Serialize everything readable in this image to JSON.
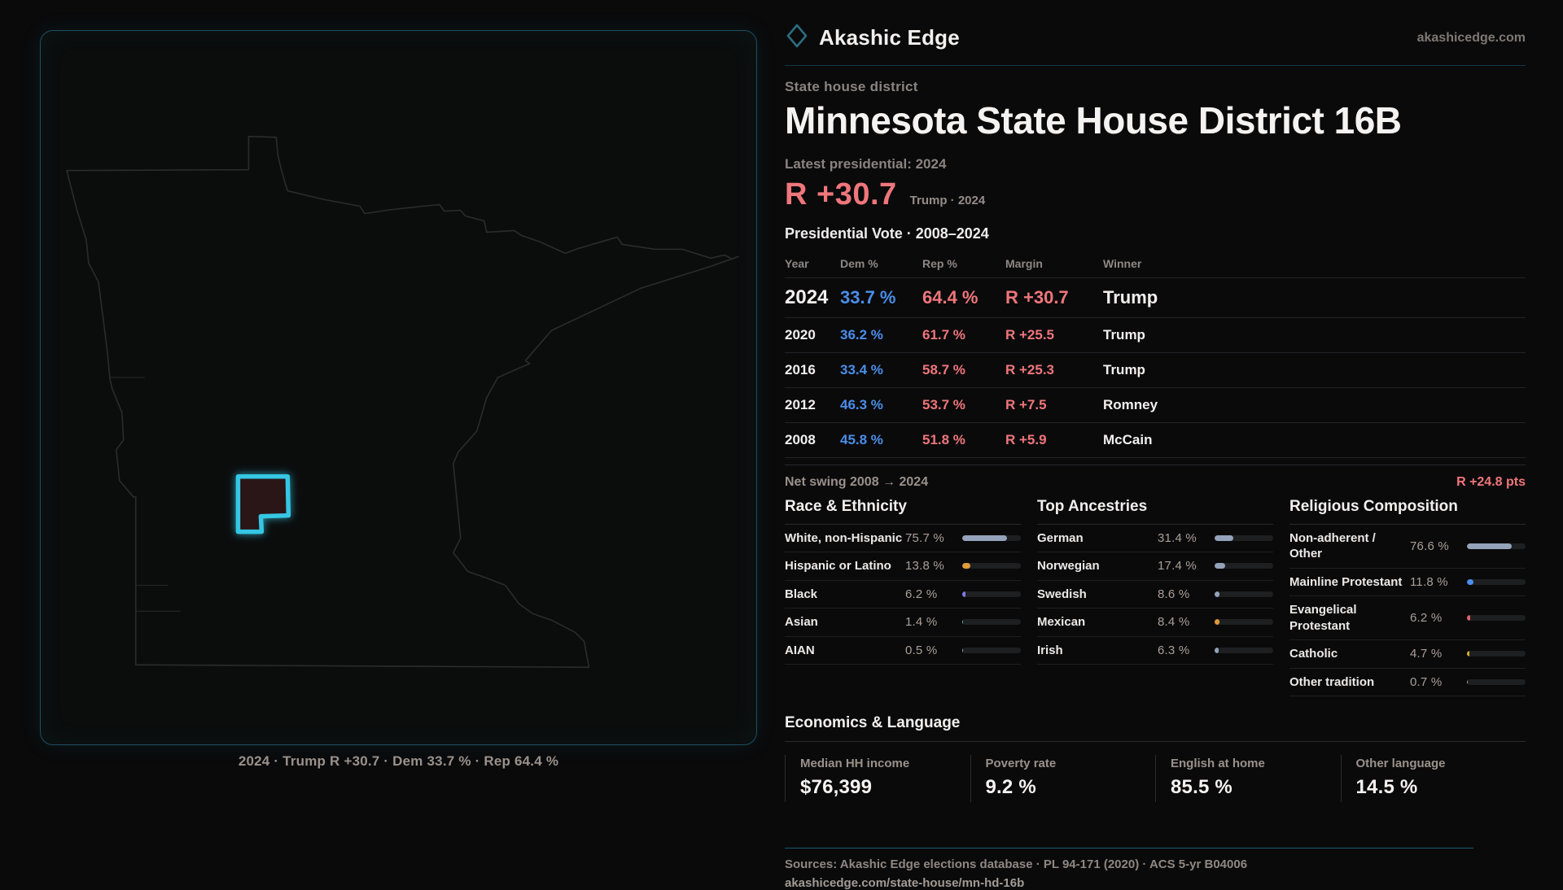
{
  "brand": {
    "name": "Akashic Edge",
    "domain": "akashicedge.com",
    "accent": "#35c7e3"
  },
  "eyebrow": "State house district",
  "title": "Minnesota State House District 16B",
  "latest_label": "Latest presidential: 2024",
  "headline_margin": {
    "value": "R +30.7",
    "context": "Trump · 2024",
    "color": "#ef767b"
  },
  "vote_table": {
    "title": "Presidential Vote · 2008–2024",
    "columns": {
      "year": "Year",
      "dem": "Dem %",
      "rep": "Rep %",
      "margin": "Margin",
      "winner": "Winner"
    },
    "rows": [
      {
        "year": "2024",
        "dem": "33.7 %",
        "rep": "64.4 %",
        "margin": "R +30.7",
        "winner": "Trump"
      },
      {
        "year": "2020",
        "dem": "36.2 %",
        "rep": "61.7 %",
        "margin": "R +25.5",
        "winner": "Trump"
      },
      {
        "year": "2016",
        "dem": "33.4 %",
        "rep": "58.7 %",
        "margin": "R +25.3",
        "winner": "Trump"
      },
      {
        "year": "2012",
        "dem": "46.3 %",
        "rep": "53.7 %",
        "margin": "R +7.5",
        "winner": "Romney"
      },
      {
        "year": "2008",
        "dem": "45.8 %",
        "rep": "51.8 %",
        "margin": "R +5.9",
        "winner": "McCain"
      }
    ]
  },
  "net_swing": {
    "label": "Net swing 2008 → 2024",
    "value": "R +24.8 pts"
  },
  "demographics": [
    {
      "title": "Race & Ethnicity",
      "rows": [
        {
          "label": "White, non-Hispanic",
          "value": "75.7 %",
          "pct": 75.7,
          "color": "#94a3ba"
        },
        {
          "label": "Hispanic or Latino",
          "value": "13.8 %",
          "pct": 13.8,
          "color": "#dd9b3a"
        },
        {
          "label": "Black",
          "value": "6.2 %",
          "pct": 6.2,
          "color": "#8379ec"
        },
        {
          "label": "Asian",
          "value": "1.4 %",
          "pct": 1.4,
          "color": "#33bf92"
        },
        {
          "label": "AIAN",
          "value": "0.5 %",
          "pct": 0.5,
          "color": "#94a3ba"
        }
      ]
    },
    {
      "title": "Top Ancestries",
      "rows": [
        {
          "label": "German",
          "value": "31.4 %",
          "pct": 31.4,
          "color": "#94a3ba"
        },
        {
          "label": "Norwegian",
          "value": "17.4 %",
          "pct": 17.4,
          "color": "#94a3ba"
        },
        {
          "label": "Swedish",
          "value": "8.6 %",
          "pct": 8.6,
          "color": "#94a3ba"
        },
        {
          "label": "Mexican",
          "value": "8.4 %",
          "pct": 8.4,
          "color": "#dd9b3a"
        },
        {
          "label": "Irish",
          "value": "6.3 %",
          "pct": 6.3,
          "color": "#94a3ba"
        }
      ]
    },
    {
      "title": "Religious Composition",
      "rows": [
        {
          "label": "Non-adherent / Other",
          "value": "76.6 %",
          "pct": 76.6,
          "color": "#94a3ba"
        },
        {
          "label": "Mainline Protestant",
          "value": "11.8 %",
          "pct": 11.8,
          "color": "#4a8ee8"
        },
        {
          "label": "Evangelical Protestant",
          "value": "6.2 %",
          "pct": 6.2,
          "color": "#dd6367"
        },
        {
          "label": "Catholic",
          "value": "4.7 %",
          "pct": 4.7,
          "color": "#d9ae2e"
        },
        {
          "label": "Other tradition",
          "value": "0.7 %",
          "pct": 0.7,
          "color": "#94a3ba"
        }
      ]
    }
  ],
  "economics": {
    "title": "Economics & Language",
    "stats": [
      {
        "label": "Median HH income",
        "value": "$76,399"
      },
      {
        "label": "Poverty rate",
        "value": "9.2 %"
      },
      {
        "label": "English at home",
        "value": "85.5 %"
      },
      {
        "label": "Other language",
        "value": "14.5 %"
      }
    ]
  },
  "footer": {
    "sources": "Sources: Akashic Edge elections database · PL 94-171 (2020) · ACS 5-yr B04006",
    "url": "akashicedge.com/state-house/mn-hd-16b"
  },
  "map": {
    "caption": "2024 · Trump R +30.7 · Dem 33.7 % · Rep 64.4 %",
    "district_fill": "#2a1216",
    "district_stroke": "#35c7e3",
    "outline_color": "#2b2b2b"
  },
  "chart_data": [
    {
      "type": "table",
      "title": "Presidential Vote · 2008–2024",
      "columns": [
        "Year",
        "Dem %",
        "Rep %",
        "Margin",
        "Winner"
      ],
      "rows": [
        [
          2024,
          33.7,
          64.4,
          "R +30.7",
          "Trump"
        ],
        [
          2020,
          36.2,
          61.7,
          "R +25.5",
          "Trump"
        ],
        [
          2016,
          33.4,
          58.7,
          "R +25.3",
          "Trump"
        ],
        [
          2012,
          46.3,
          53.7,
          "R +7.5",
          "Romney"
        ],
        [
          2008,
          45.8,
          51.8,
          "R +5.9",
          "McCain"
        ]
      ],
      "annotations": [
        "R +30.7 Trump · 2024",
        "Net swing 2008 → 2024: R +24.8 pts"
      ]
    },
    {
      "type": "bar",
      "title": "Race & Ethnicity",
      "xlabel": "",
      "ylabel": "Percent",
      "ylim": [
        0,
        100
      ],
      "categories": [
        "White, non-Hispanic",
        "Hispanic or Latino",
        "Black",
        "Asian",
        "AIAN"
      ],
      "values": [
        75.7,
        13.8,
        6.2,
        1.4,
        0.5
      ]
    },
    {
      "type": "bar",
      "title": "Top Ancestries",
      "xlabel": "",
      "ylabel": "Percent",
      "ylim": [
        0,
        100
      ],
      "categories": [
        "German",
        "Norwegian",
        "Swedish",
        "Mexican",
        "Irish"
      ],
      "values": [
        31.4,
        17.4,
        8.6,
        8.4,
        6.3
      ]
    },
    {
      "type": "bar",
      "title": "Religious Composition",
      "xlabel": "",
      "ylabel": "Percent",
      "ylim": [
        0,
        100
      ],
      "categories": [
        "Non-adherent / Other",
        "Mainline Protestant",
        "Evangelical Protestant",
        "Catholic",
        "Other tradition"
      ],
      "values": [
        76.6,
        11.8,
        6.2,
        4.7,
        0.7
      ]
    },
    {
      "type": "bar",
      "title": "Economics & Language",
      "categories": [
        "Median HH income",
        "Poverty rate",
        "English at home",
        "Other language"
      ],
      "values": [
        76399,
        9.2,
        85.5,
        14.5
      ]
    }
  ]
}
